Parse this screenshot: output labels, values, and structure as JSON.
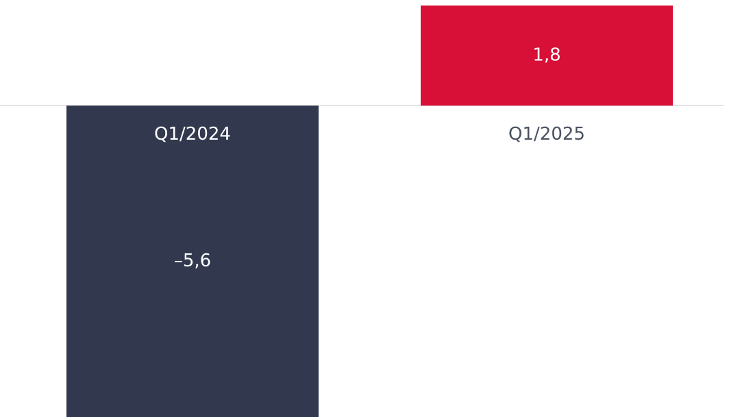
{
  "chart_data": {
    "type": "bar",
    "categories": [
      "Q1/2024",
      "Q1/2025"
    ],
    "values": [
      -5.6,
      1.8
    ],
    "value_labels": [
      "–5,6",
      "1,8"
    ],
    "colors": [
      "#32394f",
      "#d80f36"
    ],
    "ylim": [
      -5.6,
      1.9
    ]
  }
}
